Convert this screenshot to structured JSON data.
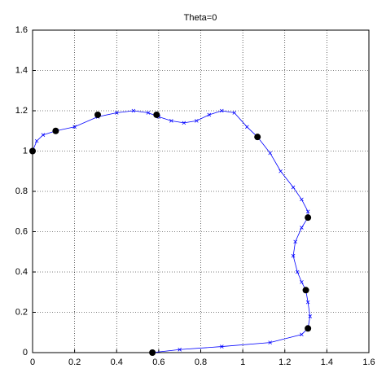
{
  "chart_data": {
    "type": "line",
    "title": "Theta=0",
    "xlim": [
      0,
      1.6
    ],
    "ylim": [
      0,
      1.6
    ],
    "xticks": [
      0,
      0.2,
      0.4,
      0.6,
      0.8,
      1,
      1.2,
      1.4,
      1.6
    ],
    "yticks": [
      0,
      0.2,
      0.4,
      0.6,
      0.8,
      1,
      1.2,
      1.4,
      1.6
    ],
    "grid": true,
    "series": [
      {
        "color": "#0000ff",
        "marker": "x",
        "linestyle": "-",
        "x": [
          0,
          0.02,
          0.05,
          0.11,
          0.2,
          0.31,
          0.4,
          0.48,
          0.55,
          0.6,
          0.66,
          0.72,
          0.78,
          0.84,
          0.9,
          0.96,
          1.02,
          1.07,
          1.13,
          1.18,
          1.24,
          1.28,
          1.31,
          1.31,
          1.28,
          1.25,
          1.24,
          1.26,
          1.28,
          1.3,
          1.31,
          1.32,
          1.31,
          1.28,
          1.13,
          0.9,
          0.7,
          0.57
        ],
        "values": [
          1.0,
          1.05,
          1.08,
          1.1,
          1.12,
          1.17,
          1.19,
          1.2,
          1.19,
          1.17,
          1.15,
          1.14,
          1.15,
          1.18,
          1.2,
          1.19,
          1.12,
          1.07,
          0.99,
          0.9,
          0.82,
          0.76,
          0.7,
          0.67,
          0.62,
          0.55,
          0.48,
          0.4,
          0.35,
          0.31,
          0.25,
          0.18,
          0.12,
          0.09,
          0.05,
          0.03,
          0.015,
          0.0
        ]
      },
      {
        "color": "#000000",
        "marker": "o",
        "linestyle": "none",
        "x": [
          0,
          0.11,
          0.31,
          0.59,
          1.07,
          1.31,
          1.3,
          1.31,
          0.57
        ],
        "values": [
          1.0,
          1.1,
          1.18,
          1.18,
          1.07,
          0.67,
          0.31,
          0.12,
          0.0
        ]
      }
    ]
  }
}
